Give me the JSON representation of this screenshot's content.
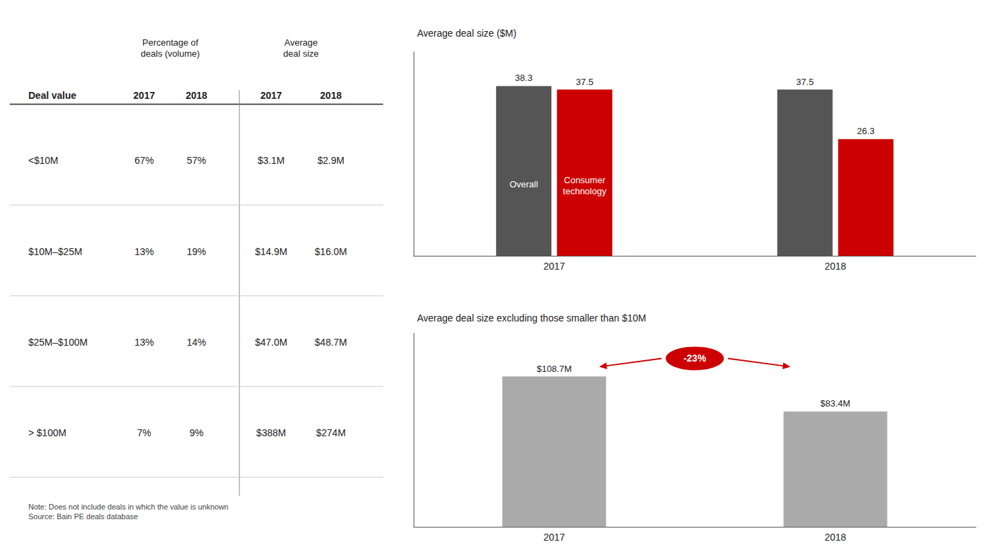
{
  "chart_data": [
    {
      "type": "table",
      "column_groups": [
        "Percentage of\ndeals (volume)",
        "Average\ndeal size"
      ],
      "columns": [
        "Deal value",
        "2017",
        "2018",
        "2017",
        "2018"
      ],
      "rows": [
        [
          "<$10M",
          "67%",
          "57%",
          "$3.1M",
          "$2.9M"
        ],
        [
          "$10M–$25M",
          "13%",
          "19%",
          "$14.9M",
          "$16.0M"
        ],
        [
          "$25M–$100M",
          "13%",
          "14%",
          "$47.0M",
          "$48.7M"
        ],
        [
          "> $100M",
          "7%",
          "9%",
          "$388M",
          "$274M"
        ]
      ],
      "note": "Note: Does not include deals in which the value is unknown\nSource: Bain PE deals database"
    },
    {
      "type": "bar",
      "title": "Average deal size ($M)",
      "categories": [
        "2017",
        "2018"
      ],
      "series": [
        {
          "name": "Overall",
          "color": "#555555",
          "values": [
            38.3,
            37.5
          ]
        },
        {
          "name": "Consumer\ntechnology",
          "color": "#cc0000",
          "values": [
            37.5,
            26.3
          ]
        }
      ],
      "ylim": [
        0,
        46
      ],
      "grid": false,
      "tick_labels": "x",
      "data_labels": true
    },
    {
      "type": "bar",
      "title": "Average deal size excluding those smaller than $10M",
      "categories": [
        "2017",
        "2018"
      ],
      "values": [
        108.7,
        83.4
      ],
      "value_labels": [
        "$108.7M",
        "$83.4M"
      ],
      "color": "#aaaaaa",
      "ylim": [
        0,
        140
      ],
      "grid": false,
      "tick_labels": "x",
      "data_labels": true,
      "annotation": {
        "text": "-23%",
        "color": "#cc0000"
      }
    }
  ]
}
